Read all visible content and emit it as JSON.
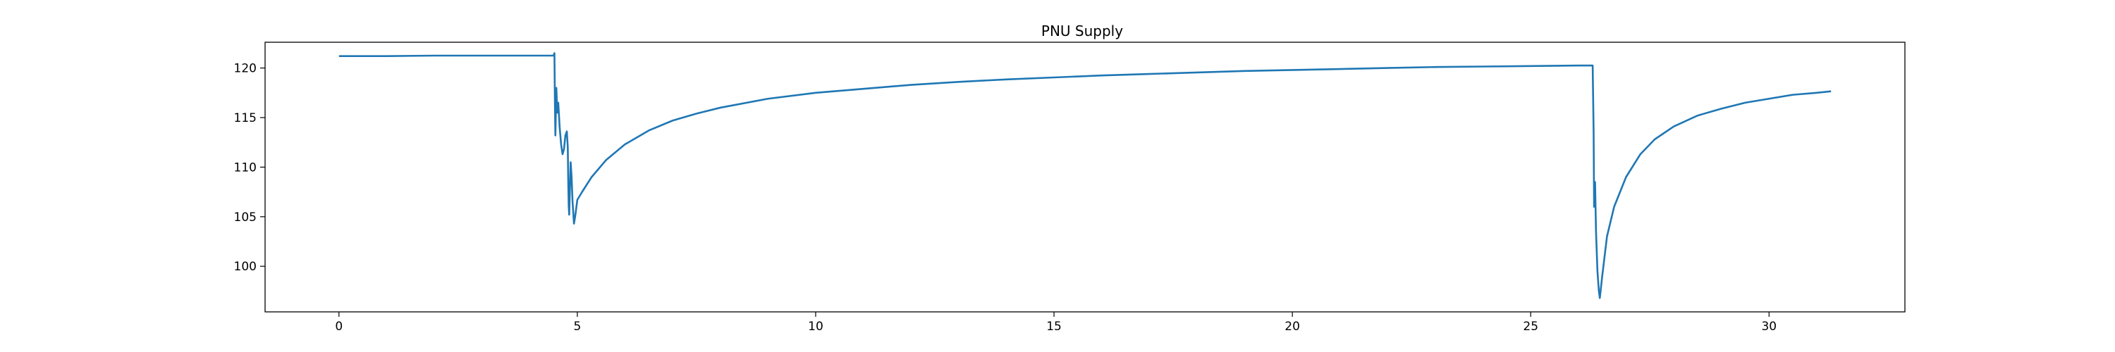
{
  "chart_data": {
    "type": "line",
    "title": "PNU Supply",
    "xlabel": "",
    "ylabel": "",
    "xlim": [
      -1.55,
      32.85
    ],
    "ylim": [
      95.4,
      122.6
    ],
    "x_ticks": [
      0,
      5,
      10,
      15,
      20,
      25,
      30
    ],
    "y_ticks": [
      100,
      105,
      110,
      115,
      120
    ],
    "x_tick_labels": [
      "0",
      "5",
      "10",
      "15",
      "20",
      "25",
      "30"
    ],
    "y_tick_labels": [
      "100",
      "105",
      "110",
      "115",
      "120"
    ],
    "grid": false,
    "legend": "none",
    "series": [
      {
        "color": "#1f77b4",
        "points": [
          [
            0,
            121.2
          ],
          [
            1.0,
            121.2
          ],
          [
            2.0,
            121.25
          ],
          [
            3.0,
            121.25
          ],
          [
            4.0,
            121.25
          ],
          [
            4.5,
            121.25
          ],
          [
            4.52,
            121.5
          ],
          [
            4.53,
            116.5
          ],
          [
            4.54,
            113.2
          ],
          [
            4.56,
            118.0
          ],
          [
            4.58,
            115.5
          ],
          [
            4.6,
            116.5
          ],
          [
            4.63,
            114.0
          ],
          [
            4.66,
            112.3
          ],
          [
            4.69,
            111.3
          ],
          [
            4.72,
            111.8
          ],
          [
            4.75,
            113.2
          ],
          [
            4.78,
            113.6
          ],
          [
            4.8,
            112.0
          ],
          [
            4.81,
            108.5
          ],
          [
            4.82,
            106.0
          ],
          [
            4.83,
            105.2
          ],
          [
            4.84,
            107.0
          ],
          [
            4.86,
            110.5
          ],
          [
            4.88,
            109.0
          ],
          [
            4.9,
            106.5
          ],
          [
            4.93,
            104.3
          ],
          [
            4.96,
            105.2
          ],
          [
            5.0,
            106.7
          ],
          [
            5.1,
            107.5
          ],
          [
            5.3,
            109.0
          ],
          [
            5.6,
            110.7
          ],
          [
            6.0,
            112.3
          ],
          [
            6.5,
            113.7
          ],
          [
            7.0,
            114.7
          ],
          [
            7.5,
            115.4
          ],
          [
            8.0,
            116.0
          ],
          [
            9.0,
            116.9
          ],
          [
            10.0,
            117.5
          ],
          [
            11.0,
            117.9
          ],
          [
            12.0,
            118.3
          ],
          [
            13.0,
            118.6
          ],
          [
            14.0,
            118.85
          ],
          [
            15.0,
            119.05
          ],
          [
            16.0,
            119.25
          ],
          [
            17.0,
            119.4
          ],
          [
            18.0,
            119.55
          ],
          [
            19.0,
            119.7
          ],
          [
            20.0,
            119.8
          ],
          [
            21.0,
            119.9
          ],
          [
            22.0,
            120.0
          ],
          [
            23.0,
            120.1
          ],
          [
            24.0,
            120.15
          ],
          [
            25.0,
            120.2
          ],
          [
            26.0,
            120.25
          ],
          [
            26.3,
            120.25
          ],
          [
            26.32,
            113.5
          ],
          [
            26.33,
            106.0
          ],
          [
            26.35,
            108.5
          ],
          [
            26.37,
            103.5
          ],
          [
            26.4,
            99.5
          ],
          [
            26.43,
            97.5
          ],
          [
            26.45,
            96.8
          ],
          [
            26.5,
            99.0
          ],
          [
            26.6,
            103.0
          ],
          [
            26.75,
            106.0
          ],
          [
            27.0,
            109.0
          ],
          [
            27.3,
            111.3
          ],
          [
            27.6,
            112.8
          ],
          [
            28.0,
            114.1
          ],
          [
            28.5,
            115.2
          ],
          [
            29.0,
            115.9
          ],
          [
            29.5,
            116.5
          ],
          [
            30.0,
            116.9
          ],
          [
            30.5,
            117.3
          ],
          [
            31.0,
            117.5
          ],
          [
            31.3,
            117.65
          ]
        ]
      }
    ]
  }
}
